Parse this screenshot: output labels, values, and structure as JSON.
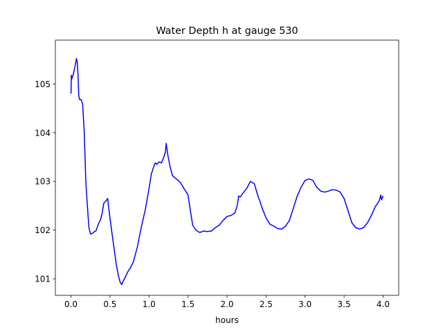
{
  "chart_data": {
    "type": "line",
    "title": "Water Depth h at gauge 530",
    "xlabel": "hours",
    "ylabel": "",
    "xlim": [
      -0.2,
      4.2
    ],
    "ylim": [
      100.66,
      105.9
    ],
    "xticks": [
      0.0,
      0.5,
      1.0,
      1.5,
      2.0,
      2.5,
      3.0,
      3.5,
      4.0
    ],
    "xtick_labels": [
      "0.0",
      "0.5",
      "1.0",
      "1.5",
      "2.0",
      "2.5",
      "3.0",
      "3.5",
      "4.0"
    ],
    "yticks": [
      101,
      102,
      103,
      104,
      105
    ],
    "ytick_labels": [
      "101",
      "102",
      "103",
      "104",
      "105"
    ],
    "grid": false,
    "legend": "none",
    "line_color": "#0000ff",
    "series": [
      {
        "x": [
          0.0,
          0.005,
          0.01,
          0.02,
          0.03,
          0.05,
          0.07,
          0.08,
          0.09,
          0.1,
          0.11,
          0.13,
          0.15,
          0.17,
          0.19,
          0.21,
          0.23,
          0.25,
          0.27,
          0.29,
          0.3,
          0.32,
          0.35,
          0.38,
          0.4,
          0.42,
          0.45,
          0.47,
          0.48,
          0.5,
          0.52,
          0.55,
          0.58,
          0.61,
          0.63,
          0.65,
          0.67,
          0.7,
          0.73,
          0.76,
          0.8,
          0.85,
          0.9,
          0.95,
          1.0,
          1.03,
          1.06,
          1.08,
          1.1,
          1.13,
          1.16,
          1.19,
          1.21,
          1.22,
          1.24,
          1.27,
          1.3,
          1.35,
          1.4,
          1.45,
          1.5,
          1.53,
          1.56,
          1.6,
          1.65,
          1.7,
          1.75,
          1.8,
          1.85,
          1.9,
          1.95,
          2.0,
          2.05,
          2.1,
          2.13,
          2.15,
          2.17,
          2.2,
          2.25,
          2.3,
          2.35,
          2.4,
          2.42,
          2.45,
          2.5,
          2.55,
          2.6,
          2.65,
          2.7,
          2.75,
          2.8,
          2.85,
          2.9,
          2.95,
          3.0,
          3.05,
          3.1,
          3.15,
          3.2,
          3.25,
          3.3,
          3.35,
          3.4,
          3.45,
          3.5,
          3.55,
          3.6,
          3.65,
          3.7,
          3.75,
          3.8,
          3.85,
          3.9,
          3.95,
          3.97,
          3.98,
          4.0
        ],
        "y": [
          104.8,
          105.18,
          105.1,
          105.15,
          105.2,
          105.35,
          105.52,
          105.45,
          105.2,
          104.75,
          104.68,
          104.68,
          104.58,
          104.0,
          103.0,
          102.5,
          102.05,
          101.92,
          101.93,
          101.95,
          101.97,
          101.98,
          102.12,
          102.22,
          102.35,
          102.55,
          102.6,
          102.65,
          102.5,
          102.25,
          102.0,
          101.65,
          101.3,
          101.05,
          100.93,
          100.88,
          100.95,
          101.05,
          101.15,
          101.22,
          101.35,
          101.65,
          102.05,
          102.4,
          102.85,
          103.15,
          103.3,
          103.38,
          103.35,
          103.4,
          103.38,
          103.5,
          103.6,
          103.78,
          103.55,
          103.3,
          103.12,
          103.05,
          102.98,
          102.85,
          102.72,
          102.4,
          102.1,
          102.0,
          101.95,
          101.98,
          101.97,
          101.98,
          102.05,
          102.1,
          102.2,
          102.28,
          102.3,
          102.35,
          102.5,
          102.7,
          102.68,
          102.75,
          102.85,
          103.0,
          102.95,
          102.68,
          102.6,
          102.45,
          102.25,
          102.12,
          102.08,
          102.03,
          102.02,
          102.08,
          102.2,
          102.45,
          102.7,
          102.88,
          103.02,
          103.05,
          103.02,
          102.88,
          102.8,
          102.78,
          102.8,
          102.83,
          102.82,
          102.78,
          102.65,
          102.4,
          102.15,
          102.05,
          102.02,
          102.05,
          102.15,
          102.3,
          102.48,
          102.6,
          102.72,
          102.62,
          102.7
        ]
      }
    ]
  }
}
